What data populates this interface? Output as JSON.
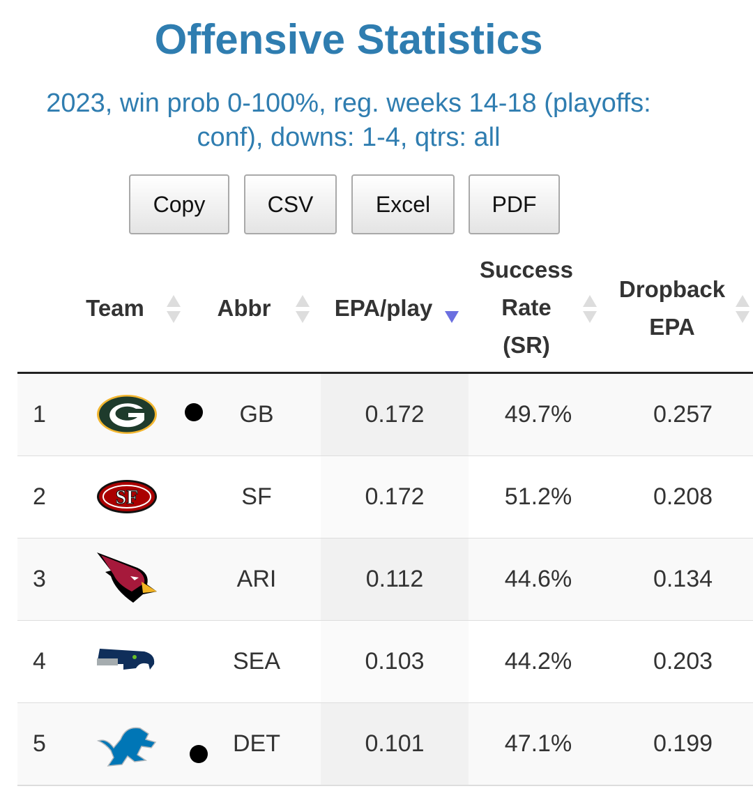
{
  "title": "Offensive Statistics",
  "subtitle_line1": "2023, win prob 0-100%, reg. weeks 14-18 (playoffs:",
  "subtitle_line2": "conf), downs: 1-4, qtrs: all",
  "buttons": [
    "Copy",
    "CSV",
    "Excel",
    "PDF"
  ],
  "columns": {
    "team": "Team",
    "abbr": "Abbr",
    "epa": "EPA/play",
    "sr": [
      "Success",
      "Rate",
      "(SR)"
    ],
    "dropback": [
      "Dropback",
      "EPA"
    ]
  },
  "sort": {
    "column": "EPA/play",
    "direction": "descending",
    "active_color": "#6b6fe0"
  },
  "accent_color": "#2f7db0",
  "rows": [
    {
      "rank": "1",
      "logo": "packers-logo",
      "abbr": "GB",
      "epa": "0.172",
      "sr": "49.7%",
      "dropback": "0.257",
      "marker": true
    },
    {
      "rank": "2",
      "logo": "49ers-logo",
      "abbr": "SF",
      "epa": "0.172",
      "sr": "51.2%",
      "dropback": "0.208",
      "marker": false
    },
    {
      "rank": "3",
      "logo": "cardinals-logo",
      "abbr": "ARI",
      "epa": "0.112",
      "sr": "44.6%",
      "dropback": "0.134",
      "marker": false
    },
    {
      "rank": "4",
      "logo": "seahawks-logo",
      "abbr": "SEA",
      "epa": "0.103",
      "sr": "44.2%",
      "dropback": "0.203",
      "marker": false
    },
    {
      "rank": "5",
      "logo": "lions-logo",
      "abbr": "DET",
      "epa": "0.101",
      "sr": "47.1%",
      "dropback": "0.199",
      "marker": true
    }
  ]
}
